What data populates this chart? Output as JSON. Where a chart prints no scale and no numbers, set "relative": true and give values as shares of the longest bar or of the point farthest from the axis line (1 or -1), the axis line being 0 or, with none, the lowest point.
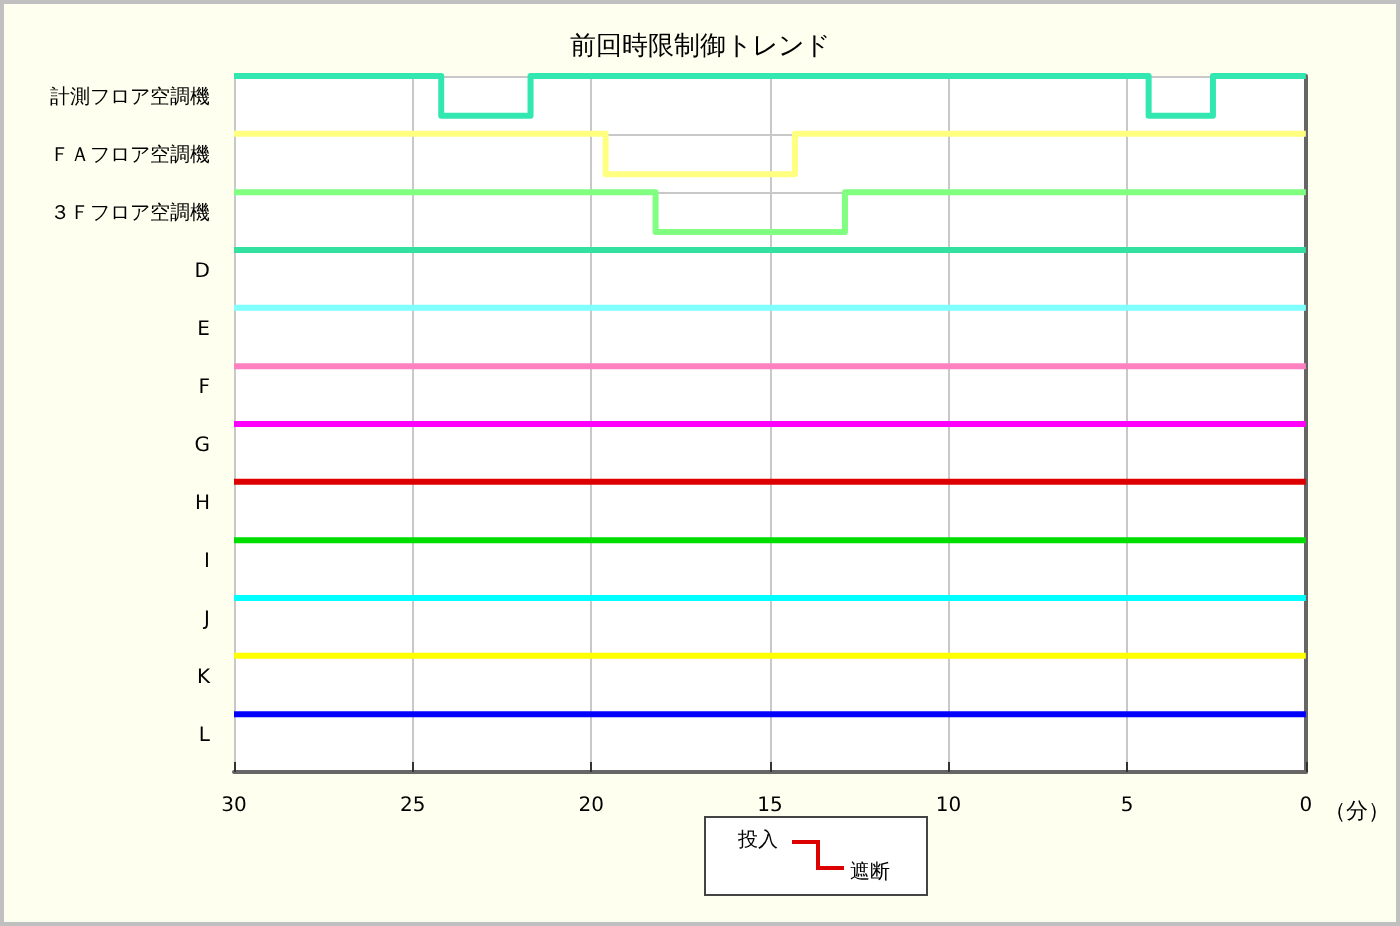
{
  "chart_data": {
    "type": "step",
    "title": "前回時限制御トレンド",
    "xlabel": "（分）",
    "relative": true,
    "xlim": [
      30,
      0
    ],
    "xticks": [
      30,
      25,
      20,
      15,
      10,
      5,
      0
    ],
    "grid": true,
    "legend": false,
    "marker": "none",
    "line_style": "solid",
    "annotations": [
      "投入",
      "遮断"
    ],
    "series": [
      {
        "name": "計測フロア空調機",
        "color": "#33e8b0",
        "x": [
          30,
          24.2,
          21.7,
          4.4,
          2.6,
          0
        ],
        "values": [
          1,
          0.943,
          1,
          0.943,
          1,
          1
        ]
      },
      {
        "name": "ＦＡフロア空調機",
        "color": "#ffff80",
        "x": [
          30,
          19.6,
          14.3,
          0
        ],
        "values": [
          0.917,
          0.859,
          0.917,
          0.917
        ]
      },
      {
        "name": "３Ｆフロア空調機",
        "color": "#80ff80",
        "x": [
          30,
          18.2,
          12.9,
          0
        ],
        "values": [
          0.833,
          0.776,
          0.833,
          0.833
        ]
      },
      {
        "name": "D",
        "color": "#33e0a0",
        "x": [
          30,
          0
        ],
        "values": [
          0.75,
          0.75
        ]
      },
      {
        "name": "E",
        "color": "#80ffff",
        "x": [
          30,
          0
        ],
        "values": [
          0.667,
          0.667
        ]
      },
      {
        "name": "F",
        "color": "#ff80c0",
        "x": [
          30,
          0
        ],
        "values": [
          0.583,
          0.583
        ]
      },
      {
        "name": "G",
        "color": "#ff00ff",
        "x": [
          30,
          0
        ],
        "values": [
          0.5,
          0.5
        ]
      },
      {
        "name": "H",
        "color": "#dd0000",
        "x": [
          30,
          0
        ],
        "values": [
          0.417,
          0.417
        ]
      },
      {
        "name": "I",
        "color": "#00dd00",
        "x": [
          30,
          0
        ],
        "values": [
          0.333,
          0.333
        ]
      },
      {
        "name": "J",
        "color": "#00ffff",
        "x": [
          30,
          0
        ],
        "values": [
          0.25,
          0.25
        ]
      },
      {
        "name": "K",
        "color": "#ffff00",
        "x": [
          30,
          0
        ],
        "values": [
          0.167,
          0.167
        ]
      },
      {
        "name": "L",
        "color": "#0000ff",
        "x": [
          30,
          0
        ],
        "values": [
          0.083,
          0.083
        ]
      }
    ]
  }
}
